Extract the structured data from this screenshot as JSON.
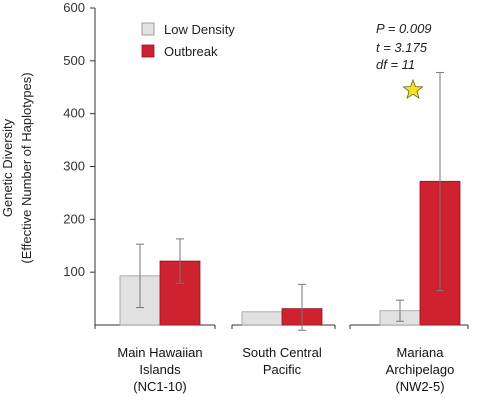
{
  "chart_data": {
    "type": "bar",
    "categories": [
      [
        "Main Hawaiian",
        "Islands",
        "(NC1-10)"
      ],
      [
        "South Central",
        "Pacific"
      ],
      [
        "Mariana",
        "Archipelago",
        "(NW2-5)"
      ]
    ],
    "series": [
      {
        "name": "Low Density",
        "values": [
          93,
          25,
          27
        ],
        "error_low": [
          33,
          25,
          7
        ],
        "error_high": [
          153,
          25,
          47
        ],
        "error_bars": [
          true,
          false,
          true
        ],
        "color": "#e1e1e1"
      },
      {
        "name": "Outbreak",
        "values": [
          121,
          31,
          272
        ],
        "error_low": [
          79,
          -10,
          65
        ],
        "error_high": [
          163,
          77,
          478
        ],
        "error_bars": [
          true,
          true,
          true
        ],
        "color": "#cf2230"
      }
    ],
    "ylabel": [
      "Genetic Diversity",
      "(Effective Number of Haplotypes)"
    ],
    "yticks": [
      "100",
      "200",
      "300",
      "400",
      "500",
      "600"
    ],
    "ytick_values": [
      100,
      200,
      300,
      400,
      500,
      600
    ],
    "ylim": [
      0,
      600
    ],
    "grid": false,
    "legend": "top-left",
    "annotation": {
      "lines": [
        {
          "symbol": "P",
          "text": " = 0.009"
        },
        {
          "symbol": "t",
          "text": " = 3.175"
        },
        {
          "symbol": "df",
          "text": " = 11"
        }
      ],
      "marker": "star",
      "marker_color": "#f5e12a"
    }
  }
}
